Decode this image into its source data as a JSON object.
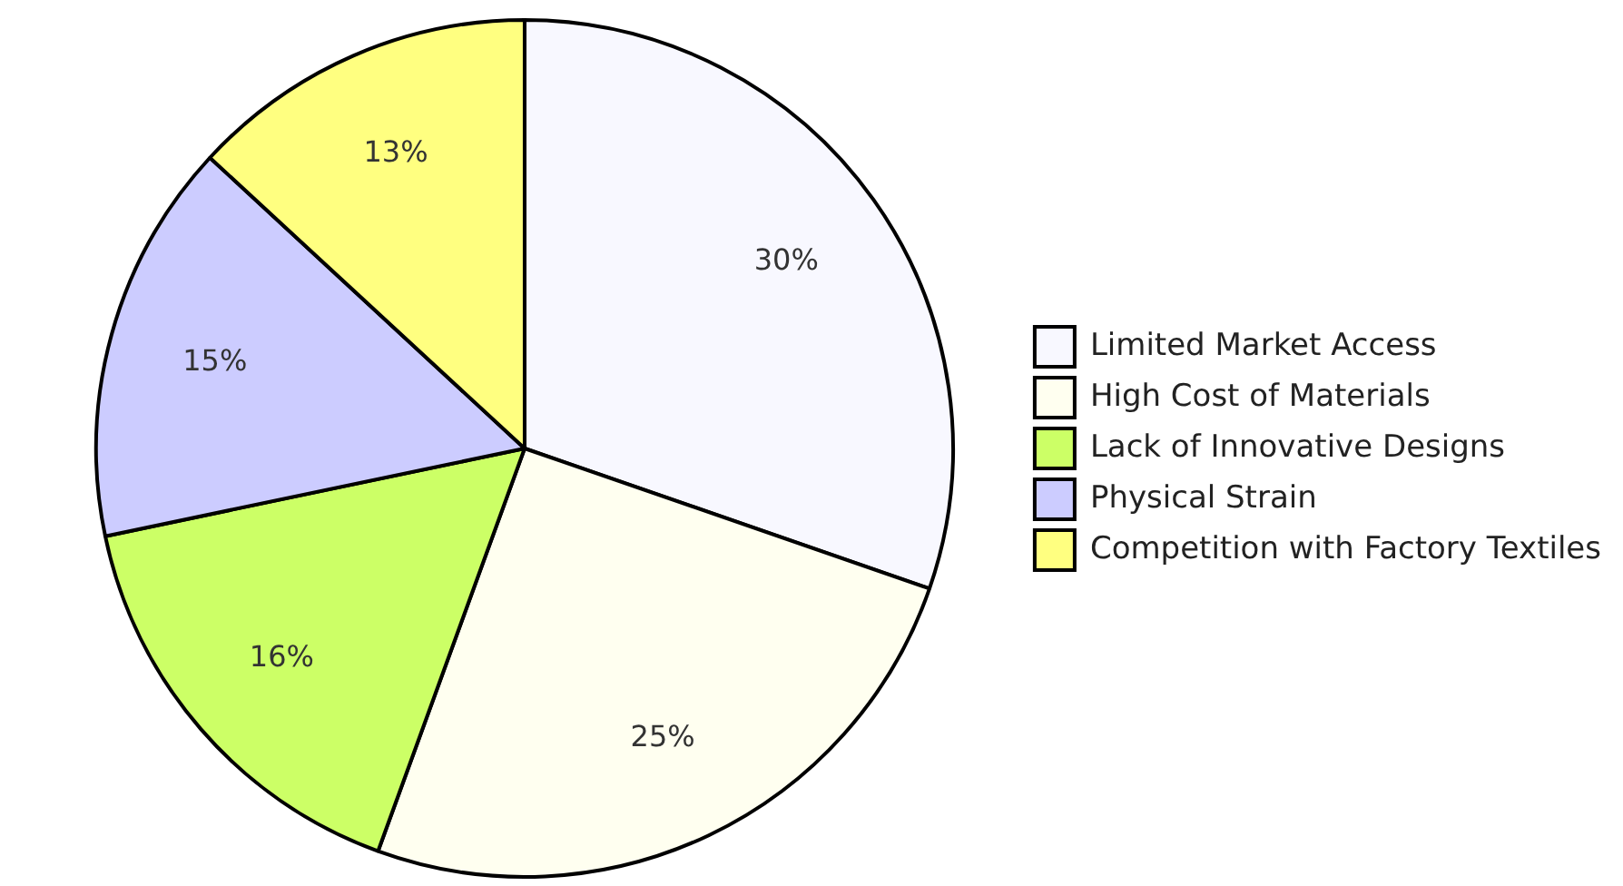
{
  "chart_data": {
    "type": "pie",
    "categories": [
      "Limited Market Access",
      "High Cost of Materials",
      "Lack of Innovative Designs",
      "Physical Strain",
      "Competition with Factory Textiles"
    ],
    "values": [
      30,
      25,
      16,
      15,
      13
    ],
    "colors": [
      "#f8f8ff",
      "#fffff0",
      "#ccff66",
      "#ccccff",
      "#ffff80"
    ],
    "value_labels": [
      "30%",
      "25%",
      "16%",
      "15%",
      "13%"
    ],
    "legend": "right"
  }
}
